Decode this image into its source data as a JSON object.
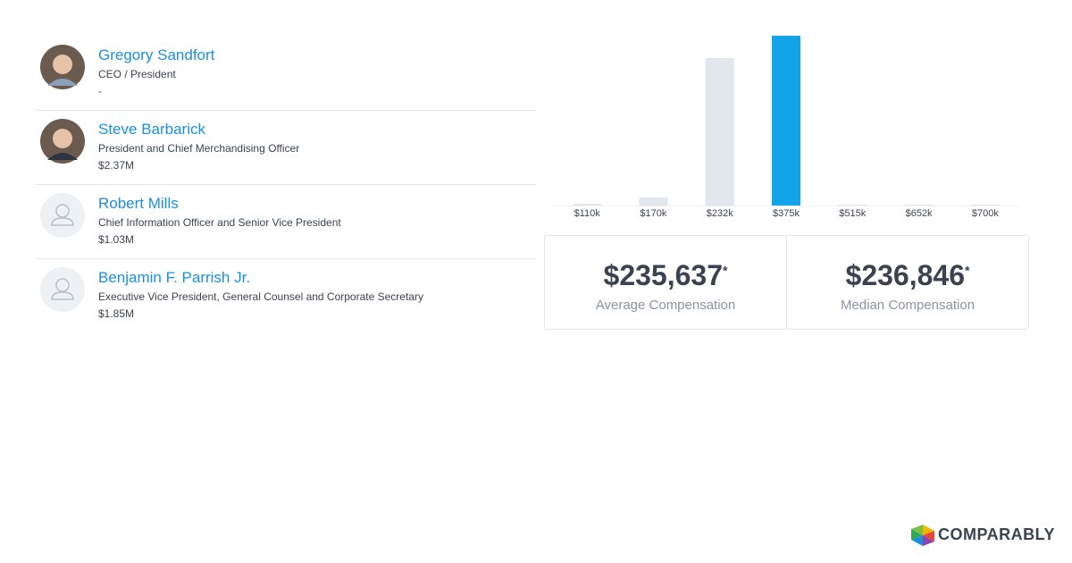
{
  "people": [
    {
      "name": "Gregory Sandfort",
      "title": "CEO / President",
      "compensation": "-"
    },
    {
      "name": "Steve Barbarick",
      "title": "President and Chief Merchandising Officer",
      "compensation": "$2.37M"
    },
    {
      "name": "Robert Mills",
      "title": "Chief Information Officer and Senior Vice President",
      "compensation": "$1.03M"
    },
    {
      "name": "Benjamin F. Parrish Jr.",
      "title": "Executive Vice President, General Counsel and Corporate Secretary",
      "compensation": "$1.85M"
    }
  ],
  "chart_data": {
    "type": "bar",
    "categories": [
      "$110k",
      "$170k",
      "$232k",
      "$375k",
      "$515k",
      "$652k",
      "$700k"
    ],
    "values": [
      2,
      9,
      165,
      190,
      1,
      1,
      1
    ],
    "colors": [
      "#e1e7ed",
      "#e1e7ed",
      "#e1e7ed",
      "#12a3e8",
      "#e1e7ed",
      "#e1e7ed",
      "#e1e7ed"
    ]
  },
  "stats": [
    {
      "value": "$235,637",
      "mark": "*",
      "label": "Average Compensation"
    },
    {
      "value": "$236,846",
      "mark": "*",
      "label": "Median Compensation"
    }
  ],
  "logo": "COMPARABLY"
}
